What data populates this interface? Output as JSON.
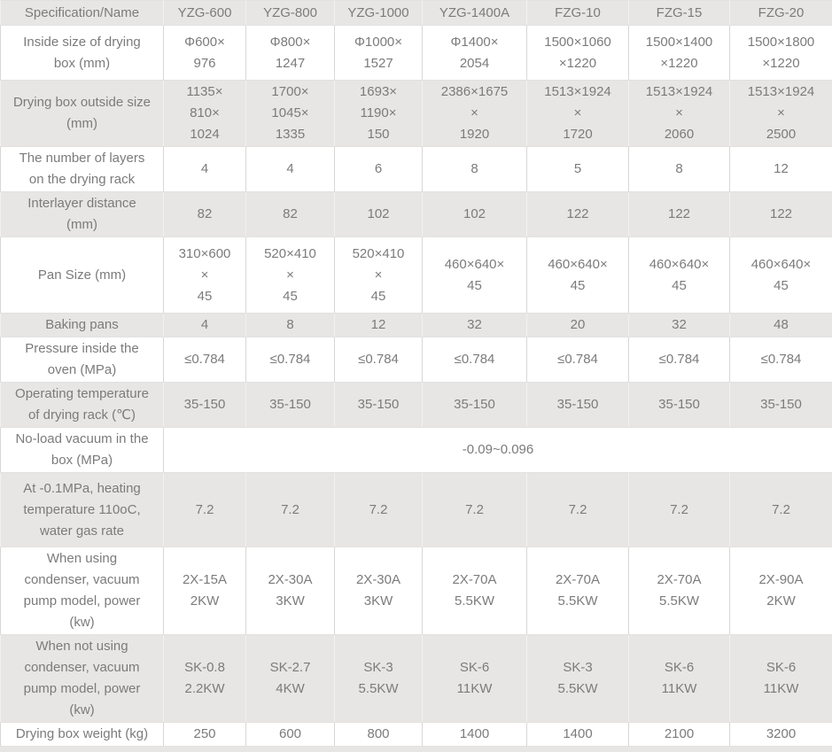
{
  "colors": {
    "stripe": "#e8e6e5",
    "stripe_border": "#f3f1f0",
    "border": "#d9d7d6",
    "text": "#7b7b7b"
  },
  "table": {
    "columns": [
      "Specification/Name",
      "YZG-600",
      "YZG-800",
      "YZG-1000",
      "YZG-1400A",
      "FZG-10",
      "FZG-15",
      "FZG-20"
    ],
    "rows": [
      {
        "label": "Inside size of drying\nbox (mm)",
        "cells": [
          "Φ600×\n976",
          "Φ800×\n1247",
          "Φ1000×\n1527",
          "Φ1400×\n2054",
          "1500×1060\n×1220",
          "1500×1400\n×1220",
          "1500×1800\n×1220"
        ]
      },
      {
        "label": "Drying box outside size\n(mm)",
        "cells": [
          "1135×\n810×\n1024",
          "1700×\n1045×\n1335",
          "1693×\n1190×\n150",
          "2386×1675\n×\n1920",
          "1513×1924\n×\n1720",
          "1513×1924\n×\n2060",
          "1513×1924\n×\n2500"
        ]
      },
      {
        "label": "The number of layers\non the drying rack",
        "cells": [
          "4",
          "4",
          "6",
          "8",
          "5",
          "8",
          "12"
        ]
      },
      {
        "label": "Interlayer distance\n(mm)",
        "cells": [
          "82",
          "82",
          "102",
          "102",
          "122",
          "122",
          "122"
        ]
      },
      {
        "label": "Pan Size (mm)",
        "cells": [
          "310×600\n×\n45",
          "520×410\n×\n45",
          "520×410\n×\n45",
          "460×640×\n45",
          "460×640×\n45",
          "460×640×\n45",
          "460×640×\n45"
        ]
      },
      {
        "label": "Baking pans",
        "cells": [
          "4",
          "8",
          "12",
          "32",
          "20",
          "32",
          "48"
        ]
      },
      {
        "label": "Pressure inside the\noven (MPa)",
        "cells": [
          "≤0.784",
          "≤0.784",
          "≤0.784",
          "≤0.784",
          "≤0.784",
          "≤0.784",
          "≤0.784"
        ]
      },
      {
        "label": "Operating temperature\nof drying rack (℃)",
        "cells": [
          "35-150",
          "35-150",
          "35-150",
          "35-150",
          "35-150",
          "35-150",
          "35-150"
        ]
      },
      {
        "label": "No-load vacuum in the\nbox (MPa)",
        "merged": "-0.09~0.096"
      },
      {
        "label": "At -0.1MPa, heating\ntemperature 110oC,\nwater gas rate",
        "cells": [
          "7.2",
          "7.2",
          "7.2",
          "7.2",
          "7.2",
          "7.2",
          "7.2"
        ]
      },
      {
        "label": "When using\ncondenser, vacuum\npump model, power\n(kw)",
        "cells": [
          "2X-15A\n2KW",
          "2X-30A\n3KW",
          "2X-30A\n3KW",
          "2X-70A\n5.5KW",
          "2X-70A\n5.5KW",
          "2X-70A\n5.5KW",
          "2X-90A\n2KW"
        ]
      },
      {
        "label": "When not using\ncondenser, vacuum\npump model, power\n(kw)",
        "cells": [
          "SK-0.8\n2.2KW",
          "SK-2.7\n4KW",
          "SK-3\n5.5KW",
          "SK-6\n11KW",
          "SK-3\n5.5KW",
          "SK-6\n11KW",
          "SK-6\n11KW"
        ]
      },
      {
        "label": "Drying box weight (kg)",
        "cells": [
          "250",
          "600",
          "800",
          "1400",
          "1400",
          "2100",
          "3200"
        ]
      }
    ]
  }
}
